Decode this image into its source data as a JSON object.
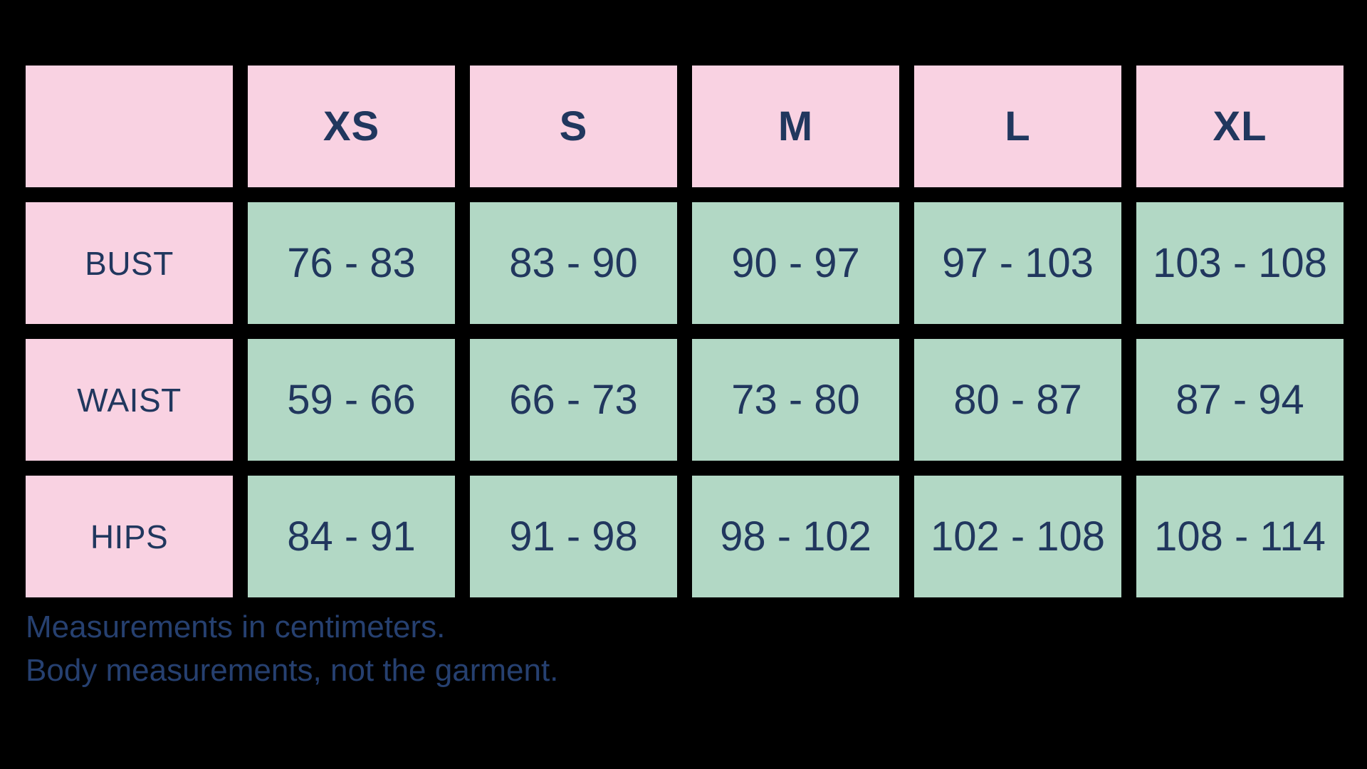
{
  "colors": {
    "background": "#000000",
    "header_cell": "#f9d2e2",
    "data_cell": "#b2d8c5",
    "table_text": "#21375e",
    "note_text": "#264070"
  },
  "table": {
    "corner": "",
    "sizes": [
      "XS",
      "S",
      "M",
      "L",
      "XL"
    ],
    "rows": [
      {
        "label": "BUST",
        "values": [
          "76 - 83",
          "83 - 90",
          "90 - 97",
          "97 - 103",
          "103 - 108"
        ]
      },
      {
        "label": "WAIST",
        "values": [
          "59 - 66",
          "66 - 73",
          "73 - 80",
          "80 - 87",
          "87 - 94"
        ]
      },
      {
        "label": "HIPS",
        "values": [
          "84 - 91",
          "91 - 98",
          "98 - 102",
          "102 - 108",
          "108 - 114"
        ]
      }
    ]
  },
  "notes": {
    "line1": "Measurements in centimeters.",
    "line2": "Body measurements, not the garment."
  },
  "chart_data": {
    "type": "table",
    "columns": [
      "",
      "XS",
      "S",
      "M",
      "L",
      "XL"
    ],
    "rows": [
      [
        "BUST",
        "76 - 83",
        "83 - 90",
        "90 - 97",
        "97 - 103",
        "103 - 108"
      ],
      [
        "WAIST",
        "59 - 66",
        "66 - 73",
        "73 - 80",
        "80 - 87",
        "87 - 94"
      ],
      [
        "HIPS",
        "84 - 91",
        "91 - 98",
        "98 - 102",
        "102 - 108",
        "108 - 114"
      ]
    ],
    "units": "centimeters",
    "annotations": [
      "Measurements in centimeters.",
      "Body measurements, not the garment."
    ]
  }
}
